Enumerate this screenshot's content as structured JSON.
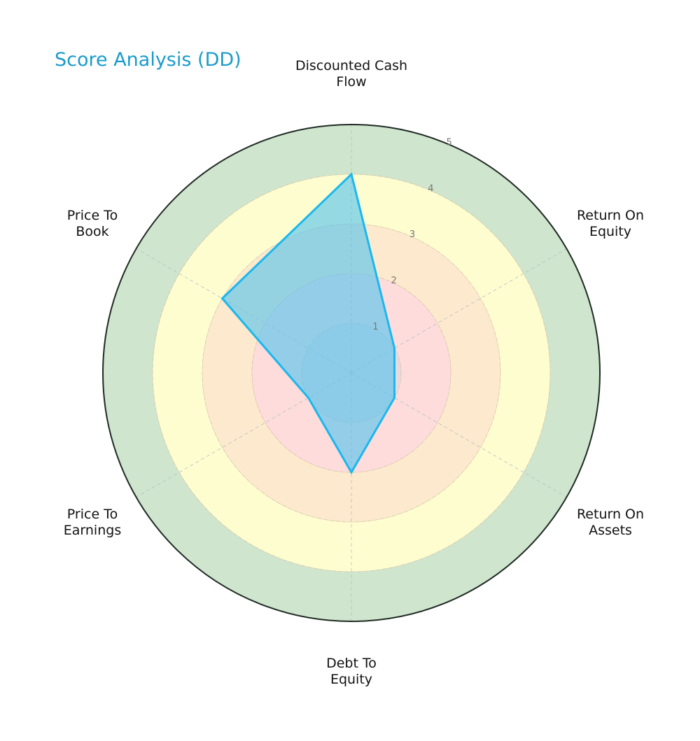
{
  "chart_data": {
    "type": "radar",
    "title": "Score Analysis (DD)",
    "categories": [
      "Discounted Cash Flow",
      "Return On Equity",
      "Return On Assets",
      "Debt To Equity",
      "Price To Earnings",
      "Price To Book"
    ],
    "category_lines": [
      [
        "Discounted Cash",
        "Flow"
      ],
      [
        "Return On",
        "Equity"
      ],
      [
        "Return On",
        "Assets"
      ],
      [
        "Debt To",
        "Equity"
      ],
      [
        "Price To",
        "Earnings"
      ],
      [
        "Price To",
        "Book"
      ]
    ],
    "series": [
      {
        "name": "DD",
        "values": [
          4,
          1,
          1,
          2,
          1,
          3
        ]
      }
    ],
    "rlim": [
      0,
      5
    ],
    "rticks": [
      "1",
      "2",
      "3",
      "4",
      "5"
    ],
    "grid": true,
    "legend": "none",
    "bands": [
      {
        "from": 0,
        "to": 1,
        "color": "#e9d9dc"
      },
      {
        "from": 1,
        "to": 2,
        "color": "#fddcdb"
      },
      {
        "from": 2,
        "to": 3,
        "color": "#fde9cd"
      },
      {
        "from": 3,
        "to": 4,
        "color": "#fefdd0"
      },
      {
        "from": 4,
        "to": 5,
        "color": "#cfe5cd"
      }
    ],
    "colors": {
      "line": "#1ab8ef",
      "fill": "#4fc3f0",
      "title": "#1a9bcc"
    }
  }
}
